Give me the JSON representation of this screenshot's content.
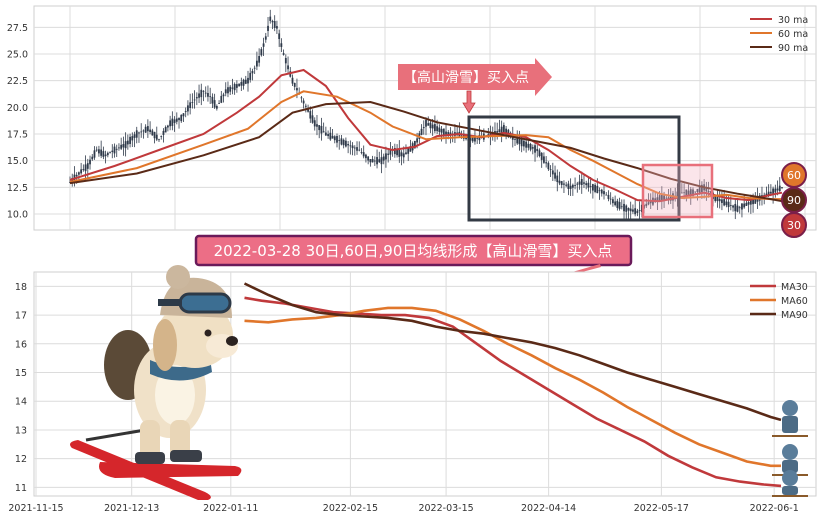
{
  "top_chart": {
    "annotation_label": "【高山滑雪】买入点",
    "badges": [
      "60",
      "90",
      "30"
    ]
  },
  "banner": "2022-03-28 30日,60日,90日均线形成【高山滑雪】买入点",
  "colors": {
    "ma30": "#c0393b",
    "ma60": "#e0762b",
    "ma90": "#5a2a17",
    "candle": "#2f3a4a",
    "callout": "#e8707b",
    "highlight": "#f3c3cc"
  },
  "chart_data": [
    {
      "type": "line",
      "subtype": "candlestick with moving averages",
      "y_ticks": [
        "10.0",
        "12.5",
        "15.0",
        "17.5",
        "20.0",
        "22.5",
        "25.0",
        "27.5"
      ],
      "ylim": [
        8.5,
        29.5
      ],
      "legend": {
        "placement": "top-right",
        "entries": [
          "30 ma",
          "60 ma",
          "90 ma"
        ]
      },
      "grid": true,
      "price_path": [
        [
          0,
          13.0
        ],
        [
          5,
          14.0
        ],
        [
          8,
          14.5
        ],
        [
          12,
          16.0
        ],
        [
          16,
          15.5
        ],
        [
          20,
          16.0
        ],
        [
          25,
          16.5
        ],
        [
          30,
          17.5
        ],
        [
          35,
          18.0
        ],
        [
          40,
          17.0
        ],
        [
          45,
          18.5
        ],
        [
          50,
          19.0
        ],
        [
          55,
          20.5
        ],
        [
          60,
          21.5
        ],
        [
          63,
          21.0
        ],
        [
          66,
          20.0
        ],
        [
          70,
          21.5
        ],
        [
          75,
          22.0
        ],
        [
          80,
          22.5
        ],
        [
          85,
          24.5
        ],
        [
          88,
          26.5
        ],
        [
          90,
          28.3
        ],
        [
          93,
          27.5
        ],
        [
          96,
          25.0
        ],
        [
          100,
          22.5
        ],
        [
          105,
          20.5
        ],
        [
          110,
          18.5
        ],
        [
          115,
          17.5
        ],
        [
          120,
          17.0
        ],
        [
          125,
          16.5
        ],
        [
          130,
          16.0
        ],
        [
          135,
          15.0
        ],
        [
          140,
          15.0
        ],
        [
          145,
          16.0
        ],
        [
          150,
          15.5
        ],
        [
          155,
          16.5
        ],
        [
          160,
          18.5
        ],
        [
          165,
          18.0
        ],
        [
          170,
          17.5
        ],
        [
          175,
          17.5
        ],
        [
          180,
          17.0
        ],
        [
          185,
          17.2
        ],
        [
          190,
          17.5
        ],
        [
          195,
          18.0
        ],
        [
          200,
          17.0
        ],
        [
          205,
          16.5
        ],
        [
          210,
          16.0
        ],
        [
          215,
          14.5
        ],
        [
          220,
          13.0
        ],
        [
          225,
          12.5
        ],
        [
          230,
          13.0
        ],
        [
          235,
          12.5
        ],
        [
          240,
          12.0
        ],
        [
          245,
          11.0
        ],
        [
          250,
          10.5
        ],
        [
          255,
          10.2
        ],
        [
          260,
          11.0
        ],
        [
          265,
          11.5
        ],
        [
          270,
          11.5
        ],
        [
          275,
          12.0
        ],
        [
          280,
          12.0
        ],
        [
          285,
          12.5
        ],
        [
          290,
          11.5
        ],
        [
          295,
          11.0
        ],
        [
          300,
          10.5
        ],
        [
          305,
          11.0
        ],
        [
          310,
          11.5
        ],
        [
          315,
          12.0
        ],
        [
          320,
          12.5
        ]
      ],
      "series": [
        {
          "name": "30 ma",
          "values": [
            [
              0,
              13.2
            ],
            [
              20,
              14.5
            ],
            [
              40,
              16.0
            ],
            [
              60,
              17.5
            ],
            [
              75,
              19.5
            ],
            [
              85,
              21.0
            ],
            [
              95,
              23.0
            ],
            [
              105,
              23.5
            ],
            [
              115,
              22.0
            ],
            [
              125,
              19.0
            ],
            [
              135,
              16.5
            ],
            [
              145,
              16.0
            ],
            [
              155,
              16.3
            ],
            [
              165,
              17.3
            ],
            [
              175,
              17.5
            ],
            [
              185,
              17.2
            ],
            [
              195,
              17.6
            ],
            [
              205,
              17.2
            ],
            [
              215,
              16.0
            ],
            [
              225,
              14.5
            ],
            [
              235,
              13.2
            ],
            [
              245,
              12.3
            ],
            [
              255,
              11.3
            ],
            [
              265,
              11.2
            ],
            [
              275,
              11.6
            ],
            [
              285,
              12.0
            ],
            [
              295,
              11.5
            ],
            [
              305,
              11.3
            ],
            [
              315,
              11.8
            ],
            [
              320,
              12.0
            ]
          ]
        },
        {
          "name": "60 ma",
          "values": [
            [
              0,
              13.0
            ],
            [
              30,
              14.3
            ],
            [
              60,
              16.5
            ],
            [
              80,
              18.0
            ],
            [
              95,
              20.5
            ],
            [
              105,
              21.5
            ],
            [
              120,
              21.0
            ],
            [
              135,
              19.5
            ],
            [
              145,
              18.2
            ],
            [
              160,
              17.0
            ],
            [
              175,
              17.2
            ],
            [
              190,
              17.3
            ],
            [
              205,
              17.4
            ],
            [
              215,
              17.2
            ],
            [
              225,
              16.0
            ],
            [
              235,
              15.0
            ],
            [
              245,
              13.9
            ],
            [
              255,
              12.8
            ],
            [
              265,
              11.9
            ],
            [
              275,
              11.5
            ],
            [
              285,
              11.6
            ],
            [
              295,
              11.8
            ],
            [
              305,
              11.5
            ],
            [
              315,
              11.4
            ],
            [
              320,
              11.4
            ]
          ]
        },
        {
          "name": "90 ma",
          "values": [
            [
              0,
              12.9
            ],
            [
              30,
              13.8
            ],
            [
              60,
              15.5
            ],
            [
              85,
              17.2
            ],
            [
              100,
              19.5
            ],
            [
              115,
              20.3
            ],
            [
              135,
              20.5
            ],
            [
              150,
              19.6
            ],
            [
              165,
              18.6
            ],
            [
              180,
              18.0
            ],
            [
              195,
              17.4
            ],
            [
              210,
              16.8
            ],
            [
              225,
              16.2
            ],
            [
              240,
              15.2
            ],
            [
              255,
              14.3
            ],
            [
              270,
              13.3
            ],
            [
              285,
              12.5
            ],
            [
              300,
              11.9
            ],
            [
              315,
              11.4
            ],
            [
              320,
              11.2
            ]
          ]
        }
      ]
    },
    {
      "type": "line",
      "x_ticks": [
        "2021-11-15",
        "2021-12-13",
        "2022-01-11",
        "2022-02-15",
        "2022-03-15",
        "2022-04-14",
        "2022-05-17",
        "2022-06-1"
      ],
      "y_ticks": [
        "11",
        "12",
        "13",
        "14",
        "15",
        "16",
        "17",
        "18"
      ],
      "ylim": [
        10.7,
        18.5
      ],
      "legend": {
        "placement": "top-right",
        "entries": [
          "MA30",
          "MA60",
          "MA90"
        ]
      },
      "grid": true,
      "series": [
        {
          "name": "MA30",
          "values": [
            [
              "2022-01-15",
              17.6
            ],
            [
              "2022-01-20",
              17.5
            ],
            [
              "2022-01-27",
              17.4
            ],
            [
              "2022-02-03",
              17.25
            ],
            [
              "2022-02-10",
              17.1
            ],
            [
              "2022-02-17",
              17.05
            ],
            [
              "2022-02-24",
              17.0
            ],
            [
              "2022-03-03",
              17.0
            ],
            [
              "2022-03-10",
              16.9
            ],
            [
              "2022-03-17",
              16.6
            ],
            [
              "2022-03-24",
              16.0
            ],
            [
              "2022-03-31",
              15.4
            ],
            [
              "2022-04-07",
              14.9
            ],
            [
              "2022-04-14",
              14.4
            ],
            [
              "2022-04-21",
              13.9
            ],
            [
              "2022-04-28",
              13.4
            ],
            [
              "2022-05-05",
              13.0
            ],
            [
              "2022-05-12",
              12.6
            ],
            [
              "2022-05-19",
              12.1
            ],
            [
              "2022-05-26",
              11.7
            ],
            [
              "2022-06-02",
              11.35
            ],
            [
              "2022-06-09",
              11.2
            ],
            [
              "2022-06-16",
              11.1
            ],
            [
              "2022-06-21",
              11.05
            ]
          ]
        },
        {
          "name": "MA60",
          "values": [
            [
              "2022-01-15",
              16.8
            ],
            [
              "2022-01-22",
              16.75
            ],
            [
              "2022-01-29",
              16.85
            ],
            [
              "2022-02-05",
              16.9
            ],
            [
              "2022-02-12",
              17.0
            ],
            [
              "2022-02-19",
              17.15
            ],
            [
              "2022-02-26",
              17.25
            ],
            [
              "2022-03-05",
              17.25
            ],
            [
              "2022-03-12",
              17.15
            ],
            [
              "2022-03-19",
              16.85
            ],
            [
              "2022-03-26",
              16.45
            ],
            [
              "2022-04-02",
              16.0
            ],
            [
              "2022-04-09",
              15.6
            ],
            [
              "2022-04-16",
              15.15
            ],
            [
              "2022-04-23",
              14.75
            ],
            [
              "2022-04-30",
              14.3
            ],
            [
              "2022-05-07",
              13.8
            ],
            [
              "2022-05-14",
              13.35
            ],
            [
              "2022-05-21",
              12.9
            ],
            [
              "2022-05-28",
              12.5
            ],
            [
              "2022-06-04",
              12.2
            ],
            [
              "2022-06-11",
              11.9
            ],
            [
              "2022-06-18",
              11.75
            ],
            [
              "2022-06-21",
              11.75
            ]
          ]
        },
        {
          "name": "MA90",
          "values": [
            [
              "2022-01-15",
              18.1
            ],
            [
              "2022-01-22",
              17.7
            ],
            [
              "2022-01-29",
              17.35
            ],
            [
              "2022-02-05",
              17.1
            ],
            [
              "2022-02-12",
              17.0
            ],
            [
              "2022-02-19",
              16.95
            ],
            [
              "2022-02-26",
              16.9
            ],
            [
              "2022-03-05",
              16.8
            ],
            [
              "2022-03-12",
              16.6
            ],
            [
              "2022-03-19",
              16.45
            ],
            [
              "2022-03-26",
              16.35
            ],
            [
              "2022-04-02",
              16.2
            ],
            [
              "2022-04-09",
              16.05
            ],
            [
              "2022-04-16",
              15.85
            ],
            [
              "2022-04-23",
              15.6
            ],
            [
              "2022-04-30",
              15.3
            ],
            [
              "2022-05-07",
              15.0
            ],
            [
              "2022-05-14",
              14.75
            ],
            [
              "2022-05-21",
              14.5
            ],
            [
              "2022-05-28",
              14.25
            ],
            [
              "2022-06-04",
              14.0
            ],
            [
              "2022-06-11",
              13.75
            ],
            [
              "2022-06-18",
              13.45
            ],
            [
              "2022-06-21",
              13.35
            ]
          ]
        }
      ]
    }
  ]
}
